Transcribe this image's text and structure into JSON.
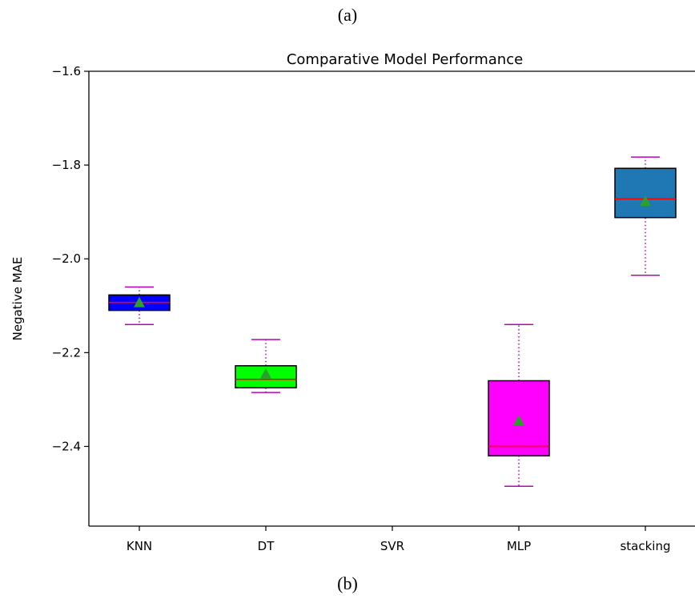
{
  "captions": {
    "top": "(a)",
    "bottom": "(b)"
  },
  "chart_data": {
    "type": "boxplot",
    "title": "Comparative Model Performance",
    "xlabel": "",
    "ylabel": "Negative MAE",
    "ylim": [
      -2.57,
      -1.6
    ],
    "yticks": [
      -1.6,
      -1.8,
      -2.0,
      -2.2,
      -2.4
    ],
    "ytick_labels": [
      "−1.6",
      "−1.8",
      "−2.0",
      "−2.2",
      "−2.4"
    ],
    "categories": [
      "KNN",
      "DT",
      "SVR",
      "MLP",
      "stacking"
    ],
    "boxes": [
      {
        "name": "KNN",
        "whisker_low": -2.14,
        "q1": -2.11,
        "median": -2.093,
        "q3": -2.077,
        "whisker_high": -2.06,
        "mean": -2.093,
        "color": "#0000ff"
      },
      {
        "name": "DT",
        "whisker_low": -2.285,
        "q1": -2.275,
        "median": -2.257,
        "q3": -2.228,
        "whisker_high": -2.172,
        "mean": -2.245,
        "color": "#00ff00"
      },
      {
        "name": "SVR"
      },
      {
        "name": "MLP",
        "whisker_low": -2.485,
        "q1": -2.42,
        "median": -2.4,
        "q3": -2.26,
        "whisker_high": -2.14,
        "mean": -2.345,
        "color": "#ff00ff"
      },
      {
        "name": "stacking",
        "whisker_low": -2.035,
        "q1": -1.912,
        "median": -1.872,
        "q3": -1.807,
        "whisker_high": -1.783,
        "mean": -1.877,
        "color": "#1f77b4"
      }
    ],
    "colors": {
      "median": "#ff0000",
      "whisker": "#bf00bf",
      "mean_marker": "#2ca02c"
    },
    "grid": false
  }
}
